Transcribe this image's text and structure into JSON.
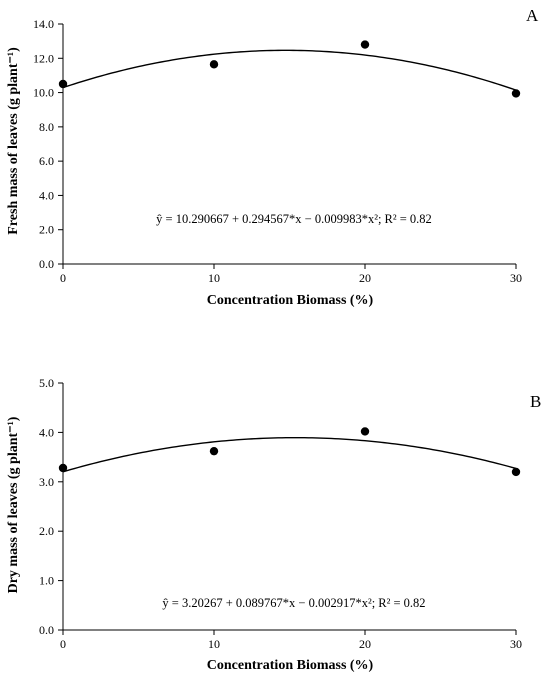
{
  "chart_data": [
    {
      "type": "scatter",
      "panel_label": "A",
      "xlabel": "Concentration Biomass (%)",
      "ylabel": "Fresh mass of leaves (g plant⁻¹)",
      "xlim": [
        0,
        30
      ],
      "ylim": [
        0,
        14
      ],
      "x_ticks": [
        "0",
        "10",
        "20",
        "30"
      ],
      "y_ticks": [
        "0.0",
        "2.0",
        "4.0",
        "6.0",
        "8.0",
        "10.0",
        "12.0",
        "14.0"
      ],
      "points": [
        {
          "x": 0,
          "y": 10.5
        },
        {
          "x": 10,
          "y": 11.65
        },
        {
          "x": 20,
          "y": 12.8
        },
        {
          "x": 30,
          "y": 9.95
        }
      ],
      "fit": {
        "a": 10.290667,
        "b": 0.294567,
        "c": -0.009983
      },
      "equation": "ŷ = 10.290667  + 0.294567*x  − 0.009983*x²;  R² = 0.82",
      "grid": false,
      "legend": "none"
    },
    {
      "type": "scatter",
      "panel_label": "B",
      "xlabel": "Concentration Biomass (%)",
      "ylabel": "Dry mass of leaves (g plant⁻¹)",
      "xlim": [
        0,
        30
      ],
      "ylim": [
        0,
        5
      ],
      "x_ticks": [
        "0",
        "10",
        "20",
        "30"
      ],
      "y_ticks": [
        "0.0",
        "1.0",
        "2.0",
        "3.0",
        "4.0",
        "5.0"
      ],
      "points": [
        {
          "x": 0,
          "y": 3.28
        },
        {
          "x": 10,
          "y": 3.62
        },
        {
          "x": 20,
          "y": 4.02
        },
        {
          "x": 30,
          "y": 3.2
        }
      ],
      "fit": {
        "a": 3.20267,
        "b": 0.089767,
        "c": -0.002917
      },
      "equation": "ŷ = 3.20267  + 0.089767*x  − 0.002917*x²;  R² = 0.82",
      "grid": false,
      "legend": "none"
    }
  ]
}
